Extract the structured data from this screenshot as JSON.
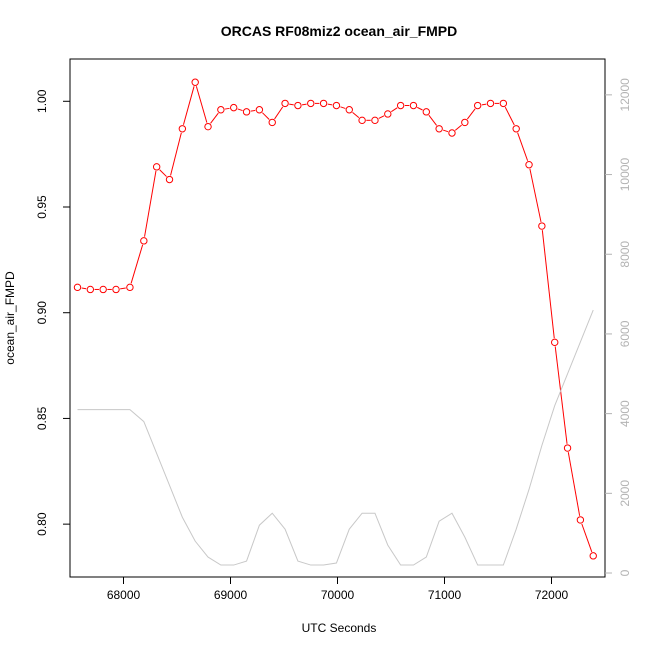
{
  "chart_data": {
    "type": "line",
    "title": "ORCAS RF08miz2 ocean_air_FMPD",
    "xlabel": "UTC Seconds",
    "ylabel": "ocean_air_FMPD",
    "xlim": [
      67500,
      72500
    ],
    "ylim": [
      0.775,
      1.02
    ],
    "y2lim": [
      -100,
      12900
    ],
    "x_ticks": [
      68000,
      69000,
      70000,
      71000,
      72000
    ],
    "y_ticks": [
      0.8,
      0.85,
      0.9,
      0.95,
      1.0
    ],
    "y_tick_labels": [
      "0.80",
      "0.85",
      "0.90",
      "0.95",
      "1.00"
    ],
    "y2_ticks": [
      0,
      2000,
      4000,
      6000,
      8000,
      10000,
      12000
    ],
    "grid": false,
    "series": [
      {
        "color": "#ff0000",
        "axis": "left",
        "marker": "circle",
        "x": [
          67570,
          67690,
          67810,
          67930,
          68060,
          68190,
          68310,
          68430,
          68550,
          68670,
          68790,
          68910,
          69030,
          69150,
          69270,
          69390,
          69510,
          69630,
          69750,
          69870,
          69990,
          70110,
          70230,
          70350,
          70470,
          70590,
          70710,
          70830,
          70950,
          71070,
          71190,
          71310,
          71430,
          71550,
          71670,
          71790,
          71910,
          72030,
          72150,
          72270,
          72390
        ],
        "y": [
          0.912,
          0.911,
          0.911,
          0.911,
          0.912,
          0.934,
          0.969,
          0.963,
          0.987,
          1.009,
          0.988,
          0.996,
          0.997,
          0.995,
          0.996,
          0.99,
          0.999,
          0.998,
          0.999,
          0.999,
          0.998,
          0.996,
          0.991,
          0.991,
          0.994,
          0.998,
          0.998,
          0.995,
          0.987,
          0.985,
          0.99,
          0.998,
          0.999,
          0.999,
          0.987,
          0.97,
          0.941,
          0.886,
          0.836,
          0.802,
          0.785
        ]
      },
      {
        "color": "#c8c8c8",
        "axis": "right",
        "marker": "none",
        "x": [
          67570,
          67690,
          67810,
          67930,
          68060,
          68190,
          68310,
          68430,
          68550,
          68670,
          68790,
          68910,
          69030,
          69150,
          69270,
          69390,
          69510,
          69630,
          69750,
          69870,
          69990,
          70110,
          70230,
          70350,
          70470,
          70590,
          70710,
          70830,
          70950,
          71070,
          71190,
          71310,
          71430,
          71550,
          71670,
          71790,
          71910,
          72030,
          72150,
          72270,
          72390
        ],
        "y": [
          4100,
          4100,
          4100,
          4100,
          4100,
          3800,
          3000,
          2200,
          1400,
          800,
          400,
          200,
          200,
          300,
          1200,
          1500,
          1100,
          300,
          200,
          200,
          250,
          1100,
          1500,
          1500,
          700,
          200,
          200,
          400,
          1300,
          1500,
          900,
          200,
          200,
          200,
          1100,
          2100,
          3200,
          4200,
          5000,
          5800,
          6600
        ]
      }
    ]
  }
}
